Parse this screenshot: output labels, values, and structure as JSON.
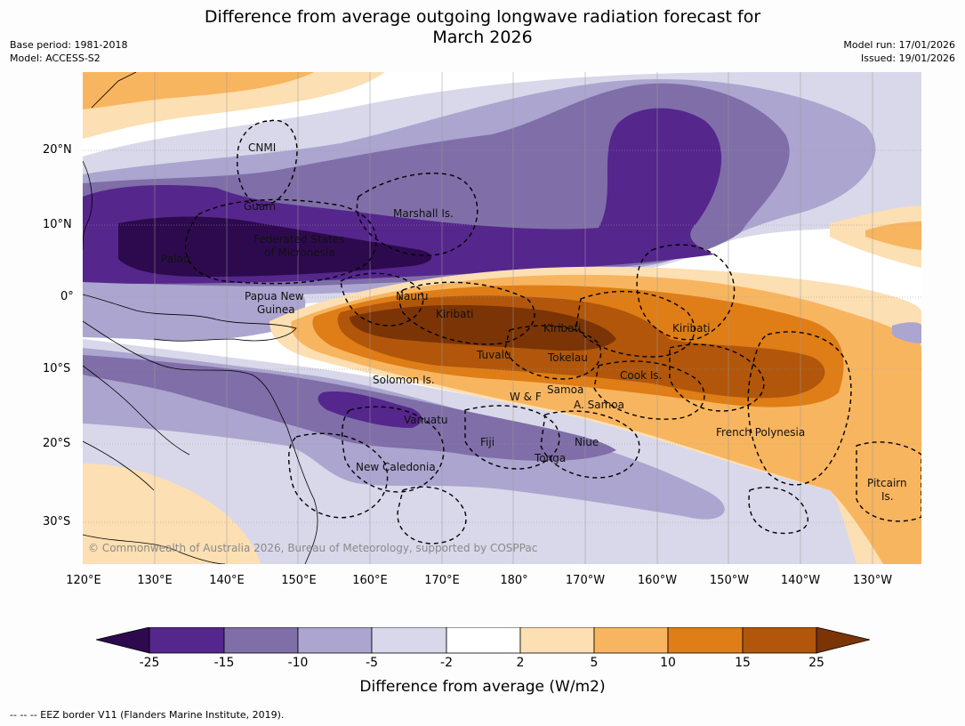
{
  "title_line1": "Difference from average outgoing longwave radiation forecast for",
  "title_line2": "March 2026",
  "meta": {
    "base_period": "Base period: 1981-2018",
    "model": "Model: ACCESS-S2",
    "model_run": "Model run: 17/01/2026",
    "issued": "Issued: 19/01/2026"
  },
  "axes": {
    "lat_labels": [
      "20°N",
      "10°N",
      "0°",
      "10°S",
      "20°S",
      "30°S"
    ],
    "lon_labels": [
      "120°E",
      "130°E",
      "140°E",
      "150°E",
      "160°E",
      "170°E",
      "180°",
      "170°W",
      "160°W",
      "150°W",
      "140°W",
      "130°W"
    ]
  },
  "places": [
    {
      "id": "cnmi",
      "text": "CNMI"
    },
    {
      "id": "guam",
      "text": "Guam"
    },
    {
      "id": "marshall",
      "text": "Marshall Is."
    },
    {
      "id": "fsm1",
      "text": "Federated States"
    },
    {
      "id": "fsm2",
      "text": "of Micronesia"
    },
    {
      "id": "palau",
      "text": "Palau"
    },
    {
      "id": "png1",
      "text": "Papua New"
    },
    {
      "id": "png2",
      "text": "Guinea"
    },
    {
      "id": "nauru",
      "text": "Nauru"
    },
    {
      "id": "kiribati1",
      "text": "Kiribati"
    },
    {
      "id": "kiribati2",
      "text": "Kiribati"
    },
    {
      "id": "kiribati3",
      "text": "Kiribati"
    },
    {
      "id": "tuvalu",
      "text": "Tuvalu"
    },
    {
      "id": "tokelau",
      "text": "Tokelau"
    },
    {
      "id": "cook",
      "text": "Cook Is."
    },
    {
      "id": "solomon",
      "text": "Solomon Is."
    },
    {
      "id": "samoa",
      "text": "Samoa"
    },
    {
      "id": "wf",
      "text": "W & F"
    },
    {
      "id": "asamoa",
      "text": "A. Samoa"
    },
    {
      "id": "vanuatu",
      "text": "Vanuatu"
    },
    {
      "id": "fiji",
      "text": "Fiji"
    },
    {
      "id": "niue",
      "text": "Niue"
    },
    {
      "id": "tonga",
      "text": "Tonga"
    },
    {
      "id": "frpoly",
      "text": "French Polynesia"
    },
    {
      "id": "newcal",
      "text": "New Caledonia"
    },
    {
      "id": "pitcairn1",
      "text": "Pitcairn"
    },
    {
      "id": "pitcairn2",
      "text": "Is."
    }
  ],
  "copyright": "© Commonwealth of Australia 2026, Bureau of Meteorology, supported by COSPPac",
  "colorbar": {
    "title": "Difference from average (W/m2)",
    "ticks": [
      "-25",
      "-15",
      "-10",
      "-5",
      "-2",
      "2",
      "5",
      "10",
      "15",
      "25"
    ],
    "colors": [
      "#2d0a4e",
      "#55268c",
      "#7f6ea8",
      "#aba5cf",
      "#d8d8ea",
      "#ffffff",
      "#fcdfb2",
      "#f8b55f",
      "#df7d16",
      "#b1560a",
      "#7b3406"
    ]
  },
  "footnote": "--  --  -- EEZ border V11 (Flanders Marine Institute, 2019)."
}
